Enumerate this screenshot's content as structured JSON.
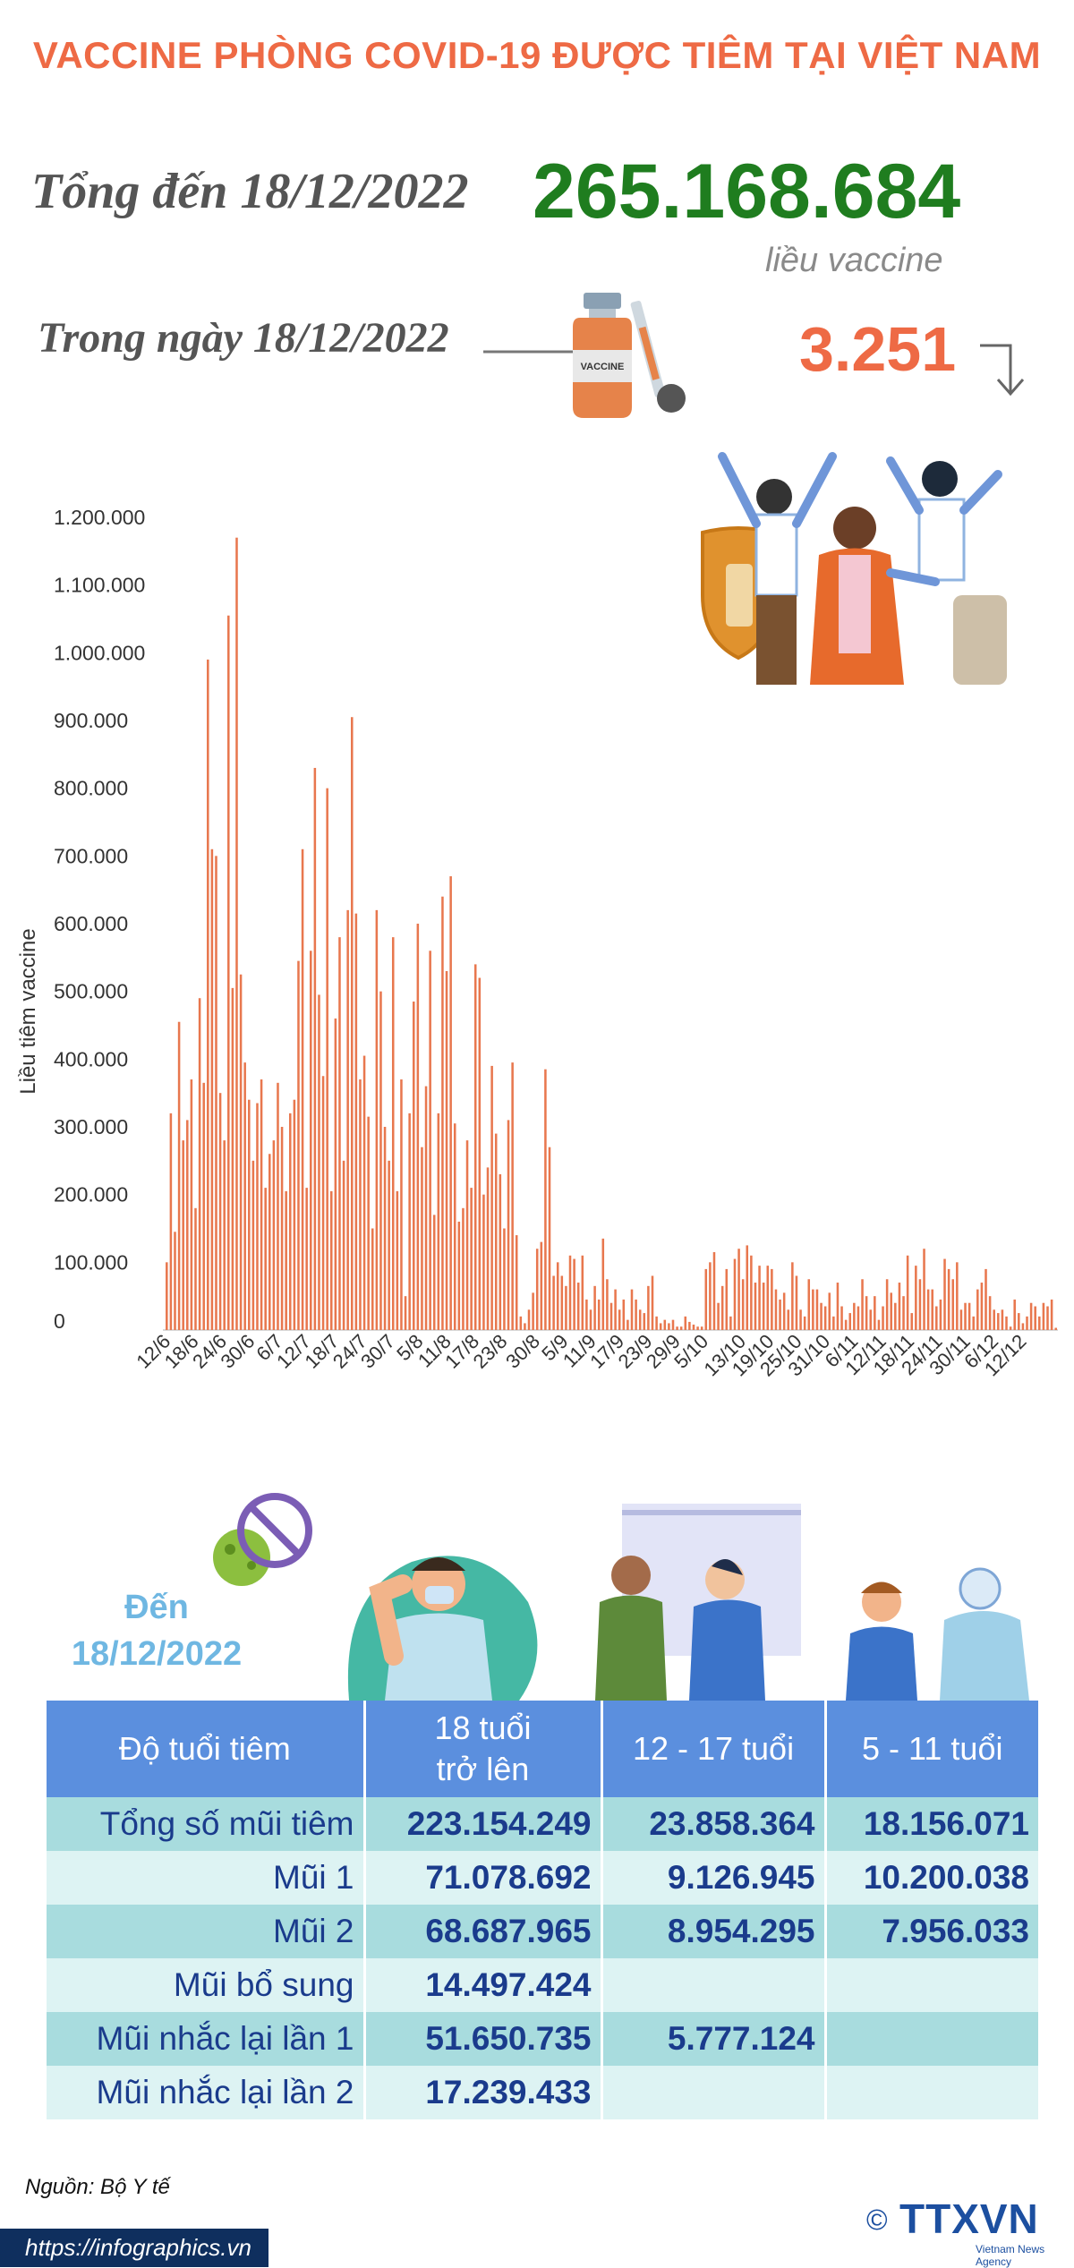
{
  "header": {
    "title": "VACCINE PHÒNG COVID-19 ĐƯỢC TIÊM TẠI VIỆT NAM",
    "total_label": "Tổng đến 18/12/2022",
    "total_value": "265.168.684",
    "total_unit": "liều vaccine",
    "day_label": "Trong ngày 18/12/2022",
    "day_value": "3.251",
    "day_trend": "down-arrow-icon",
    "vial_label": "VACCINE"
  },
  "colors": {
    "title": "#ee6a45",
    "total": "#1f7d1f",
    "bar": "#e8774e",
    "table_header": "#5b8fde",
    "row_dark": "#a8dcde",
    "row_light": "#ddf3f3",
    "table_text": "#1a3b8c",
    "date_label": "#6fb7e2"
  },
  "chart_data": {
    "type": "bar",
    "ylabel": "Liều tiêm vaccine",
    "xlabel": "",
    "ylim": [
      0,
      1200000
    ],
    "y_ticks": [
      "0",
      "100.000",
      "200.000",
      "300.000",
      "400.000",
      "500.000",
      "600.000",
      "700.000",
      "800.000",
      "900.000",
      "1.000.000",
      "1.100.000",
      "1.200.000"
    ],
    "x_tick_labels": [
      "12/6",
      "18/6",
      "24/6",
      "30/6",
      "6/7",
      "12/7",
      "18/7",
      "24/7",
      "30/7",
      "5/8",
      "11/8",
      "17/8",
      "23/8",
      "30/8",
      "5/9",
      "11/9",
      "17/9",
      "23/9",
      "29/9",
      "5/10",
      "13/10",
      "19/10",
      "25/10",
      "31/10",
      "6/11",
      "12/11",
      "18/11",
      "24/11",
      "30/11",
      "6/12",
      "12/12"
    ],
    "start_date": "2022-06-11",
    "end_date": "2022-12-18",
    "values": [
      100000,
      320000,
      145000,
      455000,
      280000,
      310000,
      370000,
      180000,
      490000,
      365000,
      990000,
      710000,
      700000,
      350000,
      280000,
      1055000,
      505000,
      1170000,
      525000,
      395000,
      340000,
      250000,
      335000,
      370000,
      210000,
      260000,
      280000,
      365000,
      300000,
      205000,
      320000,
      340000,
      545000,
      710000,
      210000,
      560000,
      830000,
      495000,
      375000,
      800000,
      205000,
      460000,
      580000,
      250000,
      620000,
      905000,
      615000,
      370000,
      405000,
      315000,
      150000,
      620000,
      500000,
      300000,
      250000,
      580000,
      205000,
      370000,
      50000,
      320000,
      485000,
      600000,
      270000,
      360000,
      560000,
      170000,
      320000,
      640000,
      530000,
      670000,
      305000,
      160000,
      180000,
      280000,
      210000,
      540000,
      520000,
      200000,
      240000,
      390000,
      290000,
      230000,
      150000,
      310000,
      395000,
      140000,
      20000,
      10000,
      30000,
      55000,
      120000,
      130000,
      385000,
      270000,
      80000,
      100000,
      80000,
      65000,
      110000,
      105000,
      70000,
      110000,
      45000,
      30000,
      65000,
      45000,
      135000,
      75000,
      40000,
      60000,
      30000,
      45000,
      15000,
      60000,
      45000,
      30000,
      25000,
      65000,
      80000,
      20000,
      10000,
      15000,
      10000,
      15000,
      5000,
      5000,
      20000,
      12000,
      8000,
      5000,
      5000,
      90000,
      100000,
      115000,
      40000,
      65000,
      90000,
      20000,
      105000,
      120000,
      75000,
      125000,
      110000,
      70000,
      95000,
      70000,
      95000,
      90000,
      60000,
      45000,
      55000,
      30000,
      100000,
      80000,
      30000,
      20000,
      75000,
      60000,
      60000,
      40000,
      35000,
      55000,
      20000,
      70000,
      35000,
      15000,
      25000,
      40000,
      35000,
      75000,
      50000,
      30000,
      50000,
      15000,
      35000,
      75000,
      55000,
      40000,
      70000,
      50000,
      110000,
      25000,
      95000,
      75000,
      120000,
      60000,
      60000,
      35000,
      45000,
      105000,
      90000,
      75000,
      100000,
      30000,
      40000,
      40000,
      20000,
      60000,
      70000,
      90000,
      50000,
      30000,
      25000,
      30000,
      20000,
      5000,
      45000,
      25000,
      10000,
      20000,
      40000,
      35000,
      20000,
      40000,
      35000,
      45000,
      3251
    ]
  },
  "as_of": {
    "line1": "Đến",
    "line2": "18/12/2022"
  },
  "table": {
    "header": {
      "col0": "Độ tuổi tiêm",
      "col1_line1": "18 tuổi",
      "col1_line2": "trở lên",
      "col2": "12 - 17 tuổi",
      "col3": "5 - 11 tuổi"
    },
    "rows": [
      [
        "Tổng số mũi tiêm",
        "223.154.249",
        "23.858.364",
        "18.156.071"
      ],
      [
        "Mũi 1",
        "71.078.692",
        "9.126.945",
        "10.200.038"
      ],
      [
        "Mũi 2",
        "68.687.965",
        "8.954.295",
        "7.956.033"
      ],
      [
        "Mũi bổ sung",
        "14.497.424",
        "",
        ""
      ],
      [
        "Mũi nhắc lại lần 1",
        "51.650.735",
        "5.777.124",
        ""
      ],
      [
        "Mũi nhắc lại lần 2",
        "17.239.433",
        "",
        ""
      ]
    ]
  },
  "footer": {
    "source": "Nguồn: Bộ Y tế",
    "url": "https://infographics.vn",
    "logo_text": "TTXVN",
    "logo_sub": "Vietnam News Agency",
    "copyright": "©"
  }
}
